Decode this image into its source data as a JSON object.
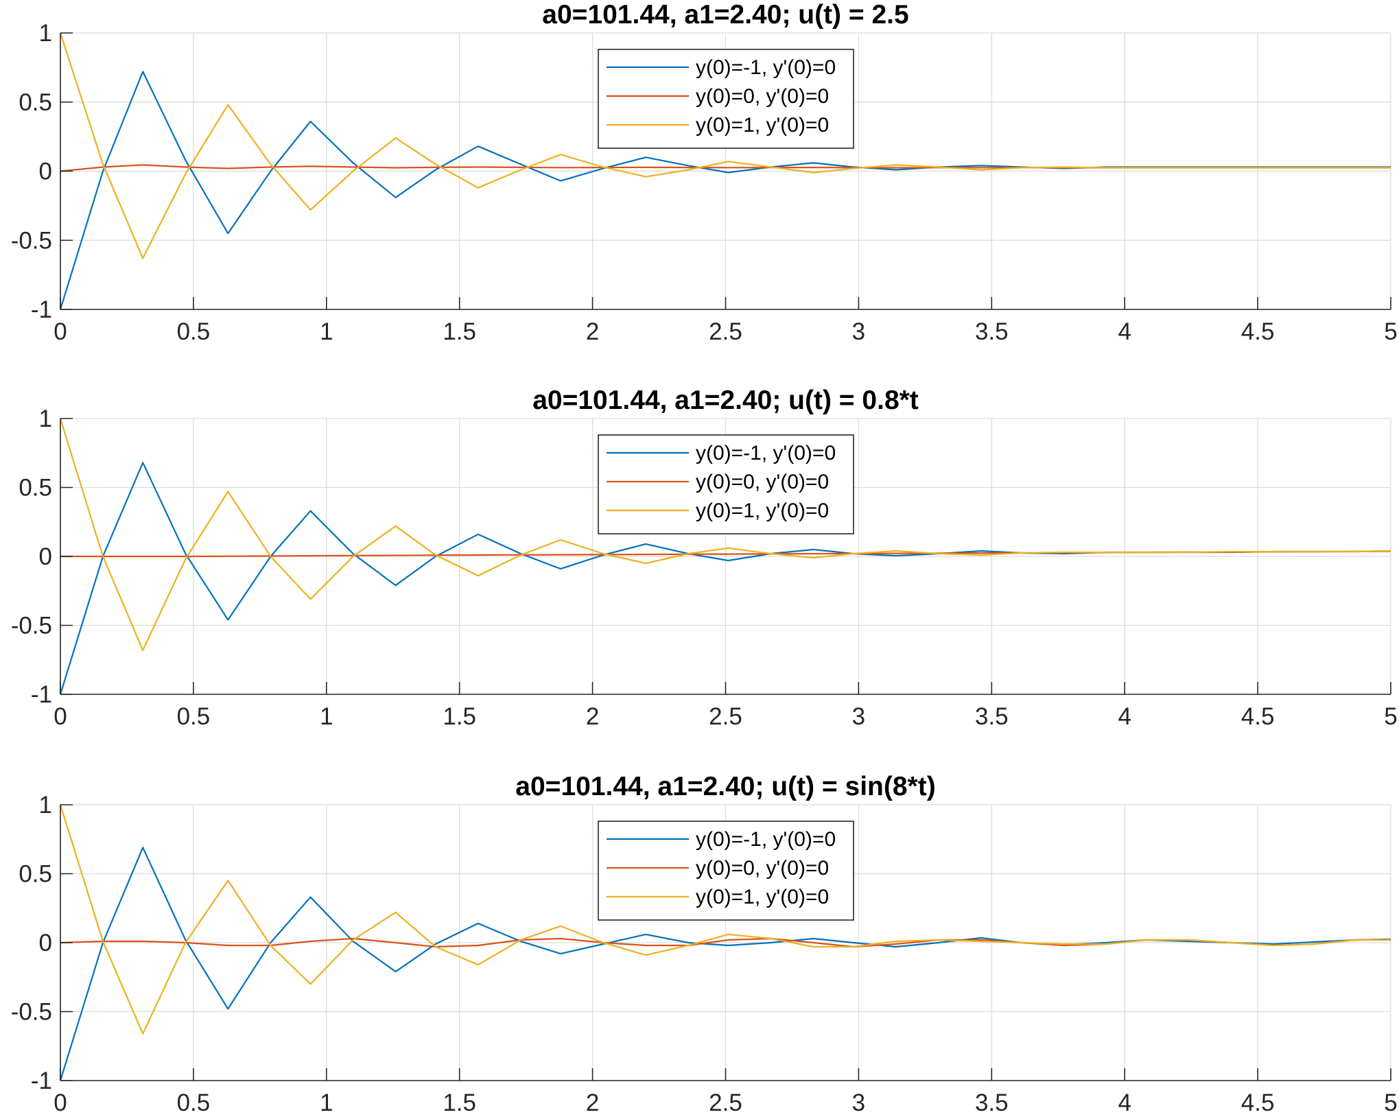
{
  "chart_data": [
    {
      "type": "line",
      "title": "a0=101.44, a1=2.40; u(t) = 2.5",
      "xlabel": "",
      "ylabel": "",
      "xlim": [
        0,
        5
      ],
      "ylim": [
        -1,
        1
      ],
      "xticks": [
        "0",
        "0.5",
        "1",
        "1.5",
        "2",
        "2.5",
        "3",
        "3.5",
        "4",
        "4.5",
        "5"
      ],
      "yticks": [
        "-1",
        "-0.5",
        "0",
        "0.5",
        "1"
      ],
      "grid": true,
      "legend_position": "top-center",
      "series": [
        {
          "name": "y(0)=-1, y'(0)=0",
          "color": "#0072BD",
          "x": [
            0,
            0.16,
            0.31,
            0.47,
            0.63,
            0.79,
            0.94,
            1.1,
            1.26,
            1.41,
            1.57,
            1.73,
            1.88,
            2.04,
            2.2,
            2.36,
            2.51,
            2.67,
            2.83,
            2.98,
            3.14,
            3.3,
            3.46,
            3.61,
            3.77,
            3.93,
            4.08,
            4.24,
            4.4,
            4.56,
            4.71,
            4.87,
            5
          ],
          "y": [
            -1,
            0,
            0.72,
            0.08,
            -0.45,
            0,
            0.36,
            0.06,
            -0.19,
            0.01,
            0.18,
            0.05,
            -0.07,
            0.02,
            0.1,
            0.04,
            -0.01,
            0.03,
            0.06,
            0.03,
            0.01,
            0.03,
            0.04,
            0.03,
            0.02,
            0.03,
            0.03,
            0.03,
            0.03,
            0.03,
            0.03,
            0.03,
            0.03
          ]
        },
        {
          "name": "y(0)=0, y'(0)=0",
          "color": "#D95319",
          "x": [
            0,
            0.16,
            0.31,
            0.47,
            0.63,
            0.79,
            0.94,
            1.1,
            1.26,
            1.41,
            1.57,
            1.73,
            1.88,
            2.04,
            2.2,
            2.36,
            2.51,
            2.67,
            2.83,
            2.98,
            3.14,
            3.3,
            3.46,
            3.61,
            3.77,
            3.93,
            4.08,
            4.24,
            4.4,
            4.56,
            4.71,
            4.87,
            5
          ],
          "y": [
            0,
            0.03,
            0.045,
            0.03,
            0.02,
            0.03,
            0.035,
            0.03,
            0.025,
            0.028,
            0.03,
            0.028,
            0.026,
            0.027,
            0.028,
            0.027,
            0.026,
            0.027,
            0.027,
            0.026,
            0.025,
            0.026,
            0.026,
            0.026,
            0.025,
            0.025,
            0.025,
            0.025,
            0.025,
            0.025,
            0.025,
            0.025,
            0.025
          ]
        },
        {
          "name": "y(0)=1, y'(0)=0",
          "color": "#EDB120",
          "x": [
            0,
            0.16,
            0.31,
            0.47,
            0.63,
            0.79,
            0.94,
            1.1,
            1.26,
            1.41,
            1.57,
            1.73,
            1.88,
            2.04,
            2.2,
            2.36,
            2.51,
            2.67,
            2.83,
            2.98,
            3.14,
            3.3,
            3.46,
            3.61,
            3.77,
            3.93,
            4.08,
            4.24,
            4.4,
            4.56,
            4.71,
            4.87,
            5
          ],
          "y": [
            1,
            0.05,
            -0.63,
            -0.02,
            0.48,
            0.05,
            -0.28,
            0.0,
            0.24,
            0.05,
            -0.12,
            0.01,
            0.12,
            0.03,
            -0.04,
            0.01,
            0.07,
            0.03,
            -0.01,
            0.02,
            0.045,
            0.03,
            0.01,
            0.025,
            0.03,
            0.025,
            0.025,
            0.025,
            0.025,
            0.025,
            0.025,
            0.025,
            0.025
          ]
        }
      ]
    },
    {
      "type": "line",
      "title": "a0=101.44, a1=2.40; u(t) = 0.8*t",
      "xlabel": "",
      "ylabel": "",
      "xlim": [
        0,
        5
      ],
      "ylim": [
        -1,
        1
      ],
      "xticks": [
        "0",
        "0.5",
        "1",
        "1.5",
        "2",
        "2.5",
        "3",
        "3.5",
        "4",
        "4.5",
        "5"
      ],
      "yticks": [
        "-1",
        "-0.5",
        "0",
        "0.5",
        "1"
      ],
      "grid": true,
      "legend_position": "top-center",
      "series": [
        {
          "name": "y(0)=-1, y'(0)=0",
          "color": "#0072BD",
          "x": [
            0,
            0.16,
            0.31,
            0.47,
            0.63,
            0.79,
            0.94,
            1.1,
            1.26,
            1.41,
            1.57,
            1.73,
            1.88,
            2.04,
            2.2,
            2.36,
            2.51,
            2.67,
            2.83,
            2.98,
            3.14,
            3.3,
            3.46,
            3.61,
            3.77,
            3.93,
            4.08,
            4.24,
            4.4,
            4.56,
            4.71,
            4.87,
            5
          ],
          "y": [
            -1,
            0,
            0.68,
            0.02,
            -0.46,
            0,
            0.33,
            0.02,
            -0.21,
            0.0,
            0.16,
            0.02,
            -0.09,
            0.01,
            0.09,
            0.02,
            -0.03,
            0.02,
            0.05,
            0.02,
            0.005,
            0.02,
            0.04,
            0.025,
            0.02,
            0.03,
            0.03,
            0.03,
            0.03,
            0.035,
            0.035,
            0.035,
            0.04
          ]
        },
        {
          "name": "y(0)=0, y'(0)=0",
          "color": "#D95319",
          "x": [
            0,
            0.5,
            1,
            1.5,
            2,
            2.5,
            3,
            3.5,
            4,
            4.5,
            5
          ],
          "y": [
            0,
            0.0,
            0.005,
            0.01,
            0.013,
            0.017,
            0.021,
            0.025,
            0.029,
            0.033,
            0.037
          ]
        },
        {
          "name": "y(0)=1, y'(0)=0",
          "color": "#EDB120",
          "x": [
            0,
            0.16,
            0.31,
            0.47,
            0.63,
            0.79,
            0.94,
            1.1,
            1.26,
            1.41,
            1.57,
            1.73,
            1.88,
            2.04,
            2.2,
            2.36,
            2.51,
            2.67,
            2.83,
            2.98,
            3.14,
            3.3,
            3.46,
            3.61,
            3.77,
            3.93,
            4.08,
            4.24,
            4.4,
            4.56,
            4.71,
            4.87,
            5
          ],
          "y": [
            1,
            0.0,
            -0.68,
            -0.02,
            0.47,
            0.0,
            -0.31,
            0.0,
            0.22,
            0.01,
            -0.14,
            0.01,
            0.12,
            0.02,
            -0.05,
            0.02,
            0.06,
            0.02,
            -0.01,
            0.02,
            0.04,
            0.02,
            0.01,
            0.025,
            0.03,
            0.03,
            0.03,
            0.03,
            0.035,
            0.035,
            0.035,
            0.035,
            0.04
          ]
        }
      ]
    },
    {
      "type": "line",
      "title": "a0=101.44, a1=2.40; u(t) = sin(8*t)",
      "xlabel": "",
      "ylabel": "",
      "xlim": [
        0,
        5
      ],
      "ylim": [
        -1,
        1
      ],
      "xticks": [
        "0",
        "0.5",
        "1",
        "1.5",
        "2",
        "2.5",
        "3",
        "3.5",
        "4",
        "4.5",
        "5"
      ],
      "yticks": [
        "-1",
        "-0.5",
        "0",
        "0.5",
        "1"
      ],
      "grid": true,
      "legend_position": "top-center",
      "series": [
        {
          "name": "y(0)=-1, y'(0)=0",
          "color": "#0072BD",
          "x": [
            0,
            0.16,
            0.31,
            0.47,
            0.63,
            0.79,
            0.94,
            1.1,
            1.26,
            1.41,
            1.57,
            1.73,
            1.88,
            2.04,
            2.2,
            2.36,
            2.51,
            2.67,
            2.83,
            2.98,
            3.14,
            3.3,
            3.46,
            3.61,
            3.77,
            3.93,
            4.08,
            4.24,
            4.4,
            4.56,
            4.71,
            4.87,
            5
          ],
          "y": [
            -1,
            0.0,
            0.69,
            0.02,
            -0.48,
            0.0,
            0.33,
            0.01,
            -0.21,
            -0.01,
            0.14,
            0.01,
            -0.08,
            -0.01,
            0.06,
            0.0,
            -0.02,
            0.0,
            0.03,
            0.0,
            -0.03,
            0.0,
            0.035,
            0.0,
            -0.015,
            0.0,
            0.02,
            0.01,
            0.0,
            -0.01,
            0.005,
            0.02,
            0.025
          ]
        },
        {
          "name": "y(0)=0, y'(0)=0",
          "color": "#D95319",
          "x": [
            0,
            0.16,
            0.31,
            0.47,
            0.63,
            0.79,
            0.94,
            1.1,
            1.26,
            1.41,
            1.57,
            1.73,
            1.88,
            2.04,
            2.2,
            2.36,
            2.51,
            2.67,
            2.83,
            2.98,
            3.14,
            3.3,
            3.46,
            3.61,
            3.77,
            3.93,
            4.08,
            4.24,
            4.4,
            4.56,
            4.71,
            4.87,
            5
          ],
          "y": [
            0,
            0.01,
            0.01,
            0.0,
            -0.02,
            -0.02,
            0.01,
            0.03,
            0.0,
            -0.03,
            -0.02,
            0.02,
            0.03,
            0.0,
            -0.02,
            -0.02,
            0.02,
            0.03,
            0.0,
            -0.03,
            -0.01,
            0.02,
            0.02,
            0.0,
            -0.02,
            -0.01,
            0.02,
            0.02,
            0.0,
            -0.02,
            -0.01,
            0.02,
            0.02
          ]
        },
        {
          "name": "y(0)=1, y'(0)=0",
          "color": "#EDB120",
          "x": [
            0,
            0.16,
            0.31,
            0.47,
            0.63,
            0.79,
            0.94,
            1.1,
            1.26,
            1.41,
            1.57,
            1.73,
            1.88,
            2.04,
            2.2,
            2.36,
            2.51,
            2.67,
            2.83,
            2.98,
            3.14,
            3.3,
            3.46,
            3.61,
            3.77,
            3.93,
            4.08,
            4.24,
            4.4,
            4.56,
            4.71,
            4.87,
            5
          ],
          "y": [
            1,
            0.01,
            -0.66,
            0.0,
            0.45,
            -0.02,
            -0.3,
            0.02,
            0.22,
            -0.03,
            -0.16,
            0.02,
            0.12,
            0.0,
            -0.09,
            -0.02,
            0.06,
            0.03,
            -0.03,
            -0.03,
            0.01,
            0.02,
            0.01,
            0.0,
            -0.01,
            -0.01,
            0.02,
            0.02,
            0.0,
            -0.02,
            -0.01,
            0.02,
            0.02
          ]
        }
      ]
    }
  ]
}
